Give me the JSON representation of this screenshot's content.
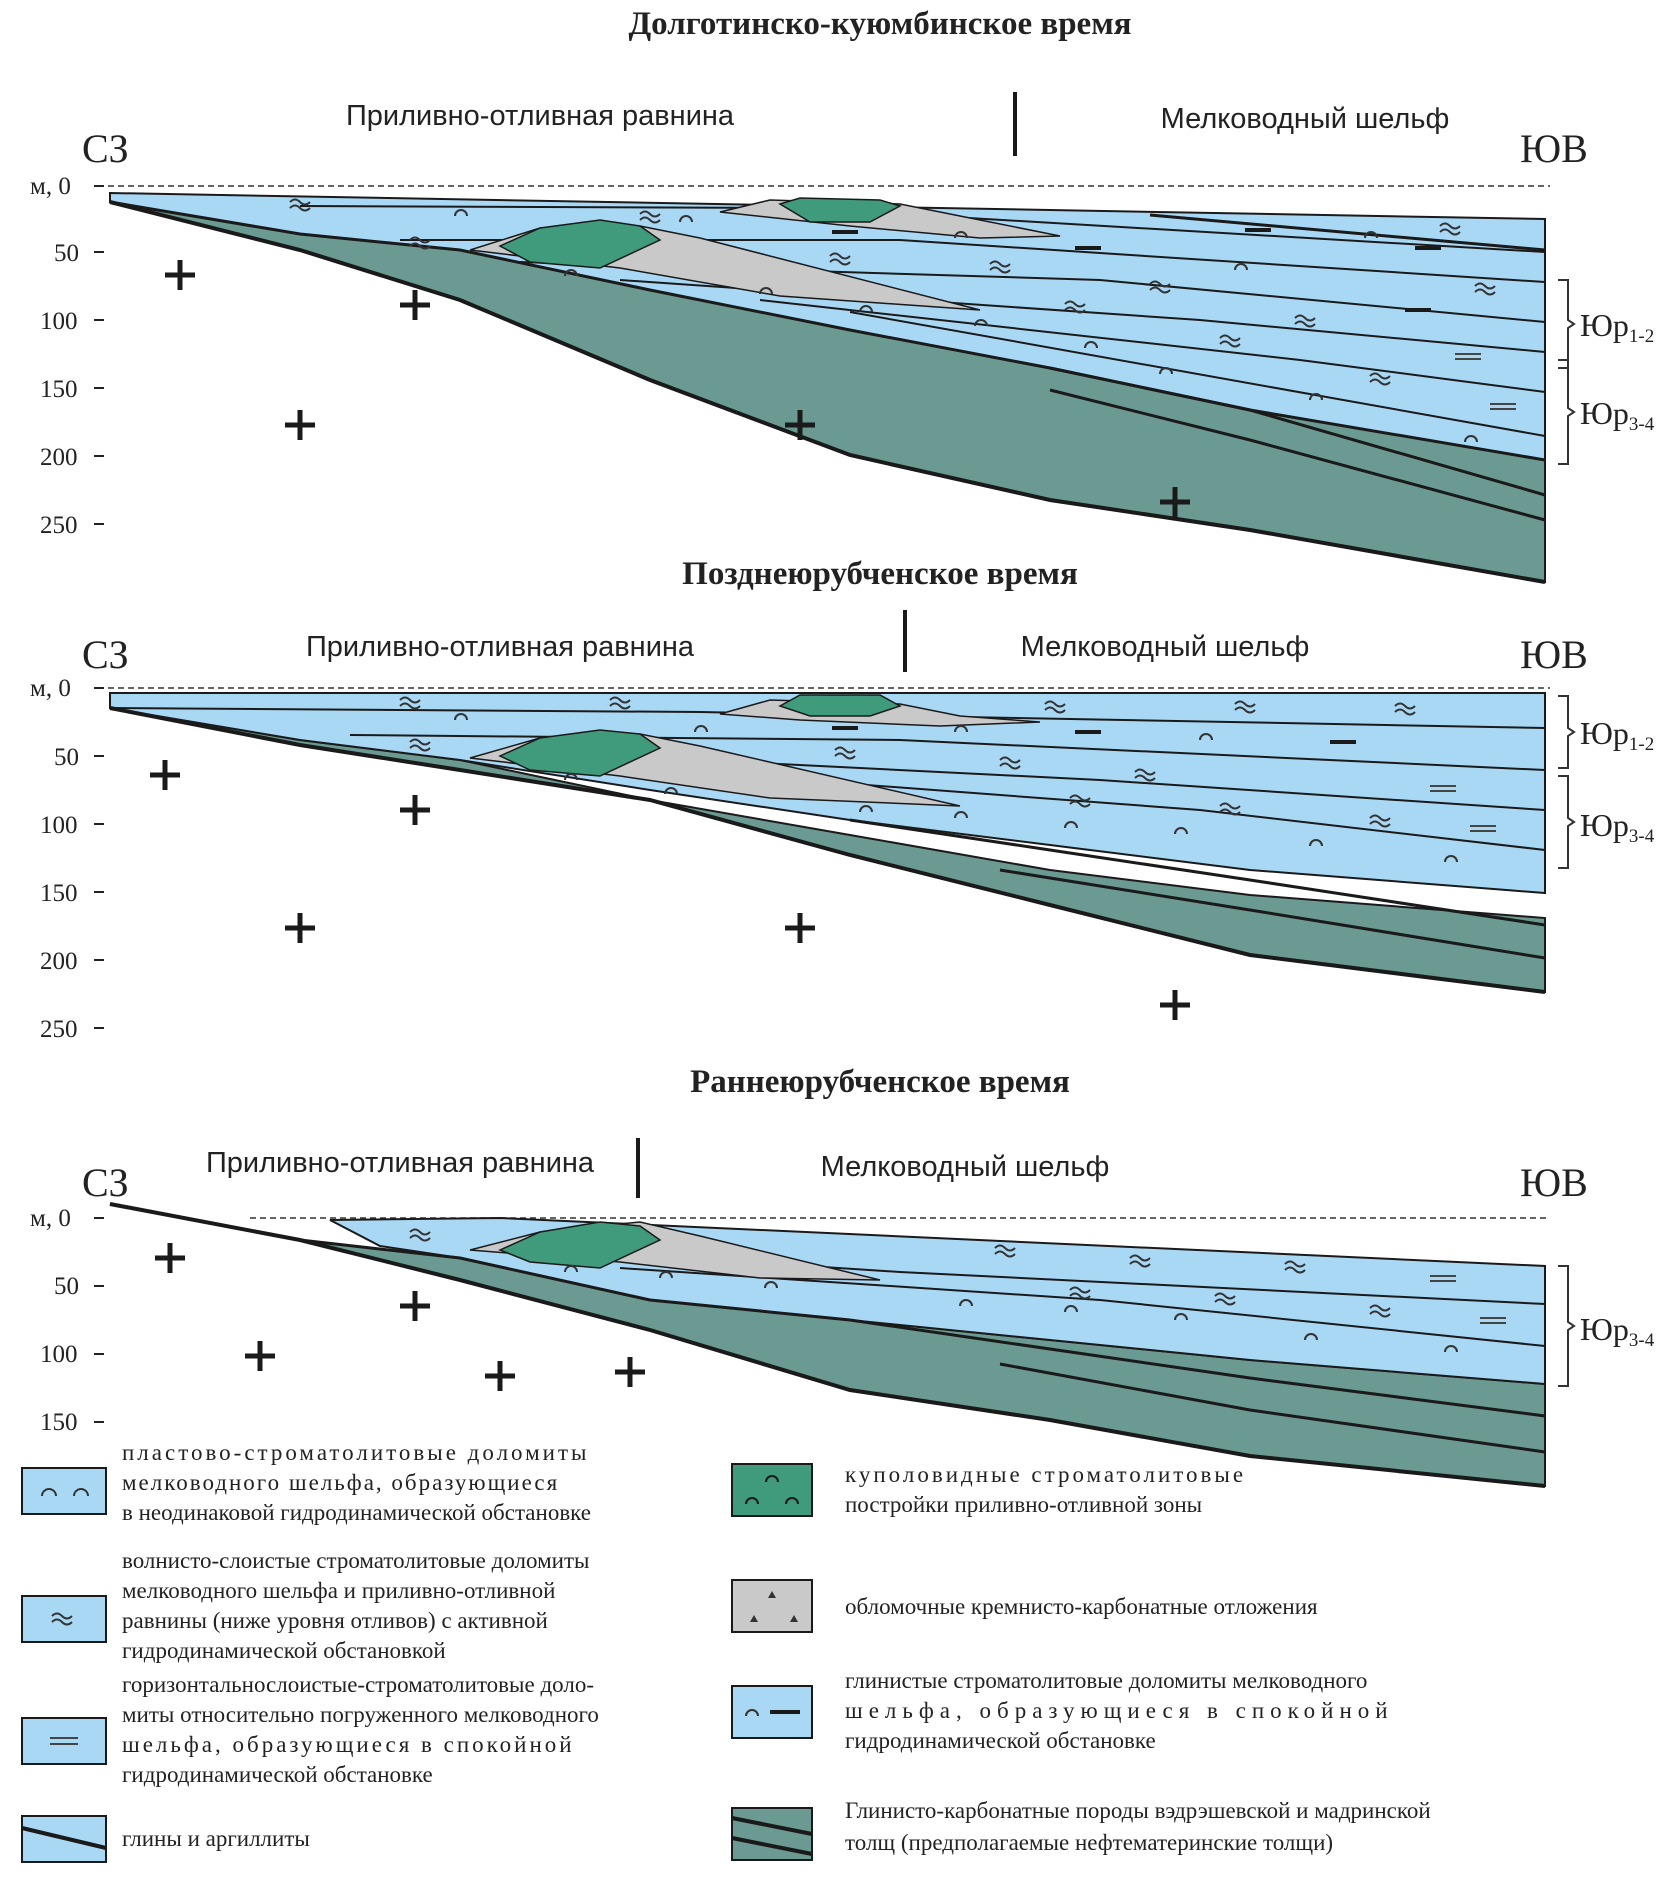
{
  "colors": {
    "water": "#a9d8f5",
    "teal": "#6a9a91",
    "green": "#3f9b7b",
    "gray": "#c9c9c9",
    "line": "#1a1a1a"
  },
  "panels": [
    {
      "title": "Долготинско-куюмбинское время",
      "zone_left": "Приливно-отливная равнина",
      "zone_right": "Мелководный шельф",
      "dir_left": "СЗ",
      "dir_right": "ЮВ",
      "depth_unit": "м, 0",
      "ticks": [
        "50",
        "100",
        "150",
        "200",
        "250"
      ],
      "units": [
        {
          "label": "Юр",
          "sub": "1-2"
        },
        {
          "label": "Юр",
          "sub": "3-4"
        }
      ]
    },
    {
      "title": "Позднеюрубченское время",
      "zone_left": "Приливно-отливная равнина",
      "zone_right": "Мелководный шельф",
      "dir_left": "СЗ",
      "dir_right": "ЮВ",
      "depth_unit": "м, 0",
      "ticks": [
        "50",
        "100",
        "150",
        "200",
        "250"
      ],
      "units": [
        {
          "label": "Юр",
          "sub": "1-2"
        },
        {
          "label": "Юр",
          "sub": "3-4"
        }
      ]
    },
    {
      "title": "Раннеюрубченское время",
      "zone_left": "Приливно-отливная равнина",
      "zone_right": "Мелководный шельф",
      "dir_left": "СЗ",
      "dir_right": "ЮВ",
      "depth_unit": "м, 0",
      "ticks": [
        "50",
        "100",
        "150"
      ],
      "units": [
        {
          "label": "Юр",
          "sub": "3-4"
        }
      ]
    }
  ],
  "legend": [
    {
      "key": "dome",
      "lines": [
        "пластово-строматолитовые доломиты",
        "мелководного шельфа, образующиеся",
        "в неодинаковой гидродинамической обстановке"
      ]
    },
    {
      "key": "wavy",
      "lines": [
        "волнисто-слоистые строматолитовые доломиты",
        "мелководного шельфа и приливно-отливной",
        "равнины (ниже уровня отливов) с активной",
        "гидродинамической обстановкой"
      ]
    },
    {
      "key": "horiz",
      "lines": [
        "горизонтальнослоистые-строматолитовые доло-",
        "миты относительно погруженного мелководного",
        "шельфа, образующиеся в спокойной",
        "гидродинамической обстановке"
      ]
    },
    {
      "key": "clay",
      "lines": [
        "глины и аргиллиты"
      ]
    },
    {
      "key": "strom",
      "lines": [
        "куполовидные строматолитовые",
        "постройки приливно-отливной зоны"
      ]
    },
    {
      "key": "clastic",
      "lines": [
        "обломочные кремнисто-карбонатные отложения"
      ]
    },
    {
      "key": "clayey",
      "lines": [
        "глинистые строматолитовые доломиты мелководного",
        "шельфа, образующиеся в спокойной",
        "гидродинамической обстановке"
      ]
    },
    {
      "key": "carb",
      "lines": [
        "Глинисто-карбонатные породы вэдрэшевской и мадринской",
        "толщ (предполагаемые нефтематеринские толщи)"
      ]
    }
  ]
}
